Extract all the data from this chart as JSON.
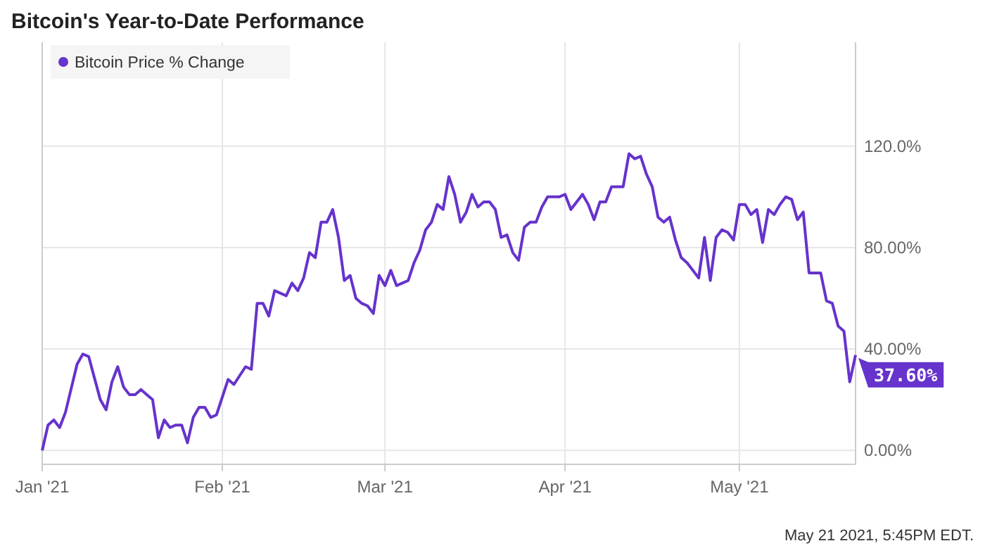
{
  "chart_data": {
    "type": "line",
    "title": "Bitcoin's Year-to-Date Performance",
    "annotations": [
      "May 21 2021, 5:45PM EDT."
    ],
    "x": [
      "2021-01-01",
      "2021-01-02",
      "2021-01-03",
      "2021-01-04",
      "2021-01-05",
      "2021-01-07",
      "2021-01-08",
      "2021-01-09",
      "2021-01-11",
      "2021-01-12",
      "2021-01-13",
      "2021-01-14",
      "2021-01-15",
      "2021-01-16",
      "2021-01-17",
      "2021-01-18",
      "2021-01-19",
      "2021-01-20",
      "2021-01-21",
      "2021-01-22",
      "2021-01-23",
      "2021-01-24",
      "2021-01-25",
      "2021-01-26",
      "2021-01-27",
      "2021-01-28",
      "2021-01-29",
      "2021-01-30",
      "2021-01-31",
      "2021-02-02",
      "2021-02-03",
      "2021-02-05",
      "2021-02-06",
      "2021-02-07",
      "2021-02-08",
      "2021-02-09",
      "2021-02-10",
      "2021-02-12",
      "2021-02-13",
      "2021-02-14",
      "2021-02-15",
      "2021-02-16",
      "2021-02-17",
      "2021-02-18",
      "2021-02-19",
      "2021-02-20",
      "2021-02-21",
      "2021-02-22",
      "2021-02-23",
      "2021-02-24",
      "2021-02-25",
      "2021-02-26",
      "2021-02-27",
      "2021-02-28",
      "2021-03-01",
      "2021-03-02",
      "2021-03-03",
      "2021-03-04",
      "2021-03-05",
      "2021-03-06",
      "2021-03-07",
      "2021-03-08",
      "2021-03-09",
      "2021-03-10",
      "2021-03-11",
      "2021-03-12",
      "2021-03-13",
      "2021-03-14",
      "2021-03-15",
      "2021-03-16",
      "2021-03-17",
      "2021-03-18",
      "2021-03-19",
      "2021-03-20",
      "2021-03-21",
      "2021-03-22",
      "2021-03-23",
      "2021-03-24",
      "2021-03-25",
      "2021-03-26",
      "2021-03-27",
      "2021-03-28",
      "2021-03-29",
      "2021-03-30",
      "2021-03-31",
      "2021-04-01",
      "2021-04-02",
      "2021-04-03",
      "2021-04-04",
      "2021-04-05",
      "2021-04-06",
      "2021-04-07",
      "2021-04-08",
      "2021-04-09",
      "2021-04-10",
      "2021-04-11",
      "2021-04-12",
      "2021-04-13",
      "2021-04-14",
      "2021-04-15",
      "2021-04-16",
      "2021-04-17",
      "2021-04-18",
      "2021-04-19",
      "2021-04-20",
      "2021-04-21",
      "2021-04-22",
      "2021-04-24",
      "2021-04-25",
      "2021-04-26",
      "2021-04-27",
      "2021-04-28",
      "2021-04-29",
      "2021-04-30",
      "2021-05-01",
      "2021-05-02",
      "2021-05-03",
      "2021-05-04",
      "2021-05-05",
      "2021-05-06",
      "2021-05-07",
      "2021-05-08",
      "2021-05-09",
      "2021-05-10",
      "2021-05-11",
      "2021-05-12",
      "2021-05-13",
      "2021-05-14",
      "2021-05-15",
      "2021-05-16",
      "2021-05-17",
      "2021-05-18",
      "2021-05-19",
      "2021-05-20",
      "2021-05-21"
    ],
    "series": [
      {
        "name": "Bitcoin Price % Change",
        "color": "#6633cc",
        "values": [
          0,
          10,
          12,
          9,
          15,
          34,
          38,
          37,
          20,
          16,
          27,
          33,
          25,
          22,
          22,
          24,
          22,
          20,
          5,
          12,
          9,
          10,
          10,
          3,
          13,
          17,
          17,
          13,
          14,
          28,
          26,
          33,
          32,
          58,
          58,
          53,
          63,
          61,
          66,
          63,
          68,
          78,
          76,
          90,
          90,
          95,
          84,
          67,
          69,
          60,
          58,
          57,
          54,
          69,
          65,
          71,
          65,
          66,
          67,
          74,
          79,
          87,
          90,
          97,
          95,
          108,
          101,
          90,
          94,
          101,
          96,
          98,
          98,
          95,
          84,
          85,
          78,
          75,
          88,
          90,
          90,
          96,
          100,
          100,
          100,
          101,
          95,
          98,
          101,
          97,
          91,
          98,
          98,
          104,
          104,
          104,
          117,
          115,
          116,
          109,
          104,
          92,
          90,
          92,
          83,
          76,
          74,
          68,
          84,
          67,
          84,
          87,
          86,
          83,
          97,
          97,
          93,
          95,
          82,
          95,
          93,
          97,
          100,
          99,
          91,
          94,
          70,
          70,
          70,
          59,
          58,
          49,
          47,
          27,
          37.6
        ],
        "value_labels": [
          null,
          null,
          null,
          null,
          null,
          null,
          null,
          null,
          null,
          null,
          null,
          null,
          null,
          null,
          null,
          null,
          null,
          null,
          null,
          null,
          null,
          null,
          null,
          null,
          null,
          null,
          null,
          null,
          null,
          null,
          null,
          null,
          null,
          null,
          null,
          null,
          null,
          null,
          null,
          null,
          null,
          null,
          null,
          null,
          null,
          null,
          null,
          null,
          null,
          null,
          null,
          null,
          null,
          null,
          null,
          null,
          null,
          null,
          null,
          null,
          null,
          null,
          null,
          null,
          null,
          null,
          null,
          null,
          null,
          null,
          null,
          null,
          null,
          null,
          null,
          null,
          null,
          null,
          null,
          null,
          null,
          null,
          null,
          null,
          null,
          null,
          null,
          null,
          null,
          null,
          null,
          null,
          null,
          null,
          null,
          null,
          null,
          null,
          null,
          null,
          null,
          null,
          null,
          null,
          null,
          null,
          null,
          null,
          null,
          null,
          null,
          null,
          null,
          null,
          null,
          null,
          null,
          null,
          null,
          null,
          null,
          null,
          null,
          null,
          null,
          null,
          null,
          null,
          null,
          null,
          null,
          null,
          null,
          null,
          "37.60%"
        ]
      }
    ],
    "xlim": [
      "2021-01-01",
      "2021-05-21"
    ],
    "xticks": [
      {
        "value": "2021-01-01",
        "label": "Jan '21"
      },
      {
        "value": "2021-02-01",
        "label": "Feb '21"
      },
      {
        "value": "2021-03-01",
        "label": "Mar '21"
      },
      {
        "value": "2021-04-01",
        "label": "Apr '21"
      },
      {
        "value": "2021-05-01",
        "label": "May '21"
      }
    ],
    "ylim": [
      -5.5,
      161
    ],
    "yticks": [
      {
        "value": 0,
        "label": "0.00%"
      },
      {
        "value": 40,
        "label": "40.00%"
      },
      {
        "value": 80,
        "label": "80.00%"
      },
      {
        "value": 120,
        "label": "120.0%"
      }
    ],
    "grid": true,
    "legend": "top left",
    "marker": "none",
    "line_style": "solid"
  }
}
